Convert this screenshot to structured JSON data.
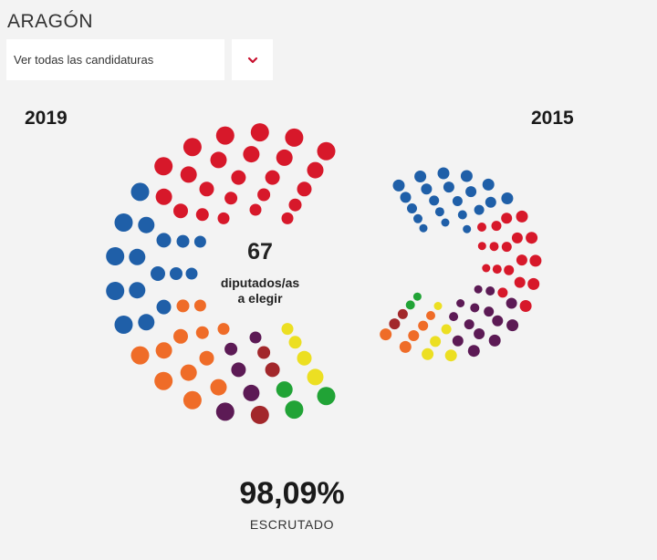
{
  "header": {
    "region": "ARAGÓN",
    "selector_value": "Ver todas las candidaturas"
  },
  "charts": {
    "left_year": "2019",
    "right_year": "2015"
  },
  "center": {
    "seats_number": "67",
    "seats_label_line1": "diputados/as",
    "seats_label_line2": "a elegir"
  },
  "progress": {
    "percent_text": "98,09%",
    "label": "ESCRUTADO",
    "value": 98.09
  },
  "icons": {
    "dropdown": "chevron-down-icon"
  },
  "colors": {
    "accent": "#c8102e",
    "background": "#f3f3f3"
  },
  "chart_data": [
    {
      "type": "parliament",
      "year": "2019",
      "total_seats": 67,
      "series": [
        {
          "color": "#d7182a",
          "seats": 24
        },
        {
          "color": "#1f5fa8",
          "seats": 16
        },
        {
          "color": "#ef6c28",
          "seats": 12
        },
        {
          "color": "#5c1a55",
          "seats": 5
        },
        {
          "color": "#a2272b",
          "seats": 3
        },
        {
          "color": "#21a336",
          "seats": 3
        },
        {
          "color": "#ecdf22",
          "seats": 4
        }
      ]
    },
    {
      "type": "parliament",
      "year": "2015",
      "total_seats": 67,
      "series": [
        {
          "color": "#1f5fa8",
          "seats": 21
        },
        {
          "color": "#d7182a",
          "seats": 18
        },
        {
          "color": "#5c1a55",
          "seats": 14
        },
        {
          "color": "#ecdf22",
          "seats": 5
        },
        {
          "color": "#ef6c28",
          "seats": 5
        },
        {
          "color": "#a2272b",
          "seats": 2
        },
        {
          "color": "#21a336",
          "seats": 2
        }
      ]
    }
  ]
}
